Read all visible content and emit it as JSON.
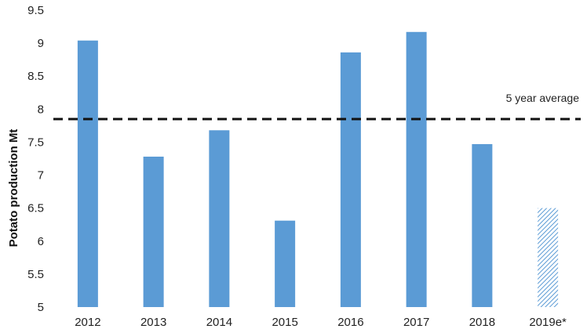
{
  "chart_data": {
    "type": "bar",
    "title": "",
    "xlabel": "",
    "ylabel": "Potato production Mt",
    "categories": [
      "2012",
      "2013",
      "2014",
      "2015",
      "2016",
      "2017",
      "2018",
      "2019e*"
    ],
    "values": [
      9.04,
      7.28,
      7.68,
      6.31,
      8.86,
      9.17,
      7.47,
      6.5
    ],
    "estimated": [
      false,
      false,
      false,
      false,
      false,
      false,
      false,
      true
    ],
    "ylim": [
      5,
      9.5
    ],
    "yticks": [
      "5",
      "5.5",
      "6",
      "6.5",
      "7",
      "7.5",
      "8",
      "8.5",
      "9",
      "9.5"
    ],
    "ytick_values": [
      5,
      5.5,
      6,
      6.5,
      7,
      7.5,
      8,
      8.5,
      9,
      9.5
    ],
    "grid": false,
    "reference_line": {
      "label": "5 year average",
      "value": 7.85,
      "style": "dashed",
      "color": "#111111"
    },
    "colors": {
      "bar": "#5b9bd5",
      "hatch": "#5b9bd5"
    }
  }
}
